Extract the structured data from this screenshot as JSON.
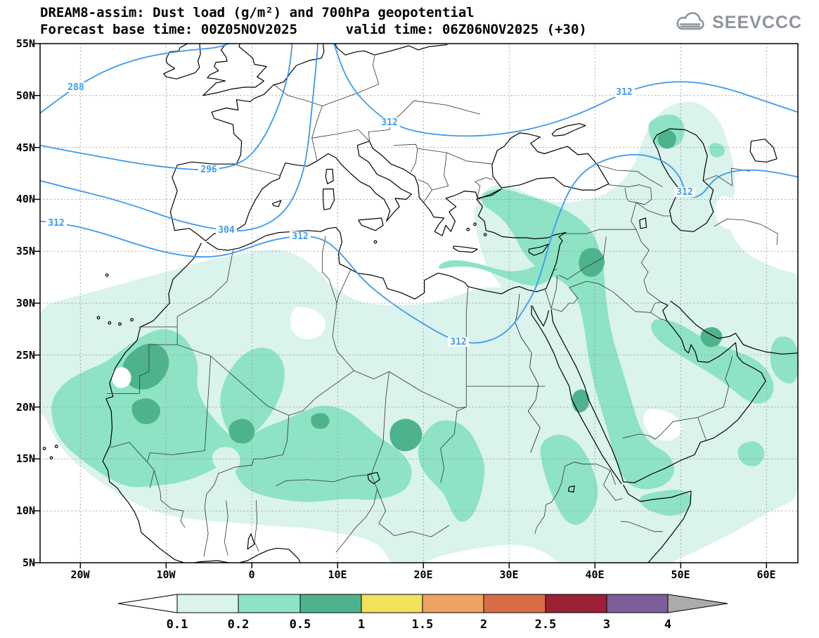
{
  "header": {
    "title_line1": "DREAM8-assim: Dust load (g/m²) and 700hPa geopotential",
    "title_line2": "Forecast base time: 00Z05NOV2025      valid time: 06Z06NOV2025 (+30)",
    "logo_text": "SEEVCCC"
  },
  "chart_data": {
    "type": "heatmap",
    "subtype": "filled-contour-forecast-map",
    "title": "DREAM8-assim: Dust load (g/m²) and 700hPa geopotential",
    "forecast_base_time": "00Z05NOV2025",
    "valid_time": "06Z06NOV2025",
    "lead_time": "+30",
    "x_axis": {
      "type": "longitude",
      "ticks": [
        "20W",
        "10W",
        "0",
        "10E",
        "20E",
        "30E",
        "40E",
        "50E",
        "60E"
      ]
    },
    "y_axis": {
      "type": "latitude",
      "ticks": [
        "55N",
        "50N",
        "45N",
        "40N",
        "35N",
        "30N",
        "25N",
        "20N",
        "15N",
        "10N",
        "5N"
      ]
    },
    "colorbar": {
      "tick_labels": [
        "0.1",
        "0.2",
        "0.5",
        "1",
        "1.5",
        "2",
        "2.5",
        "3",
        "4"
      ],
      "segment_colors": [
        "#daf3ec",
        "#8de3c4",
        "#4eb38c",
        "#f1e15b",
        "#eda361",
        "#d96c47",
        "#9c2136",
        "#7d5e9a"
      ],
      "below_min_color": "#ffffff",
      "above_max_color": "#ababab"
    },
    "dust_levels": [
      {
        "range": "0.1-0.2",
        "color": "#daf3ec"
      },
      {
        "range": "0.2-0.5",
        "color": "#8de3c4"
      },
      {
        "range": "0.5-1",
        "color": "#4eb38c"
      }
    ],
    "geopotential_contours": {
      "color": "#3b9af0",
      "labels": [
        "288",
        "296",
        "304",
        "312",
        "312",
        "312",
        "312",
        "312",
        "312"
      ]
    },
    "grid": true,
    "legend_position": "bottom"
  }
}
